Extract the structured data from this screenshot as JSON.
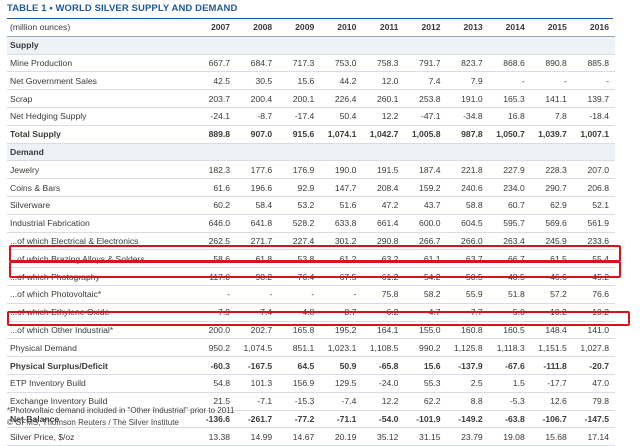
{
  "title": "TABLE 1 • WORLD SILVER SUPPLY AND DEMAND",
  "unit_label": "(million ounces)",
  "years": [
    "2007",
    "2008",
    "2009",
    "2010",
    "2011",
    "2012",
    "2013",
    "2014",
    "2015",
    "2016"
  ],
  "rows": [
    {
      "type": "section",
      "label": "Supply",
      "values": []
    },
    {
      "type": "row",
      "label": "Mine Production",
      "values": [
        "667.7",
        "684.7",
        "717.3",
        "753.0",
        "758.3",
        "791.7",
        "823.7",
        "868.6",
        "890.8",
        "885.8"
      ]
    },
    {
      "type": "row",
      "label": "Net Government Sales",
      "values": [
        "42.5",
        "30.5",
        "15.6",
        "44.2",
        "12.0",
        "7.4",
        "7.9",
        "-",
        "-",
        "-"
      ]
    },
    {
      "type": "row",
      "label": "Scrap",
      "values": [
        "203.7",
        "200.4",
        "200.1",
        "226.4",
        "260.1",
        "253.8",
        "191.0",
        "165.3",
        "141.1",
        "139.7"
      ]
    },
    {
      "type": "row",
      "label": "Net Hedging Supply",
      "values": [
        "-24.1",
        "-8.7",
        "-17.4",
        "50.4",
        "12.2",
        "-47.1",
        "-34.8",
        "16.8",
        "7.8",
        "-18.4"
      ]
    },
    {
      "type": "total",
      "label": "Total Supply",
      "values": [
        "889.8",
        "907.0",
        "915.6",
        "1,074.1",
        "1,042.7",
        "1,005.8",
        "987.8",
        "1,050.7",
        "1,039.7",
        "1,007.1"
      ]
    },
    {
      "type": "section",
      "label": "Demand",
      "values": []
    },
    {
      "type": "row",
      "label": "Jewelry",
      "values": [
        "182.3",
        "177.6",
        "176.9",
        "190.0",
        "191.5",
        "187.4",
        "221.8",
        "227.9",
        "228.3",
        "207.0"
      ]
    },
    {
      "type": "row",
      "label": "Coins & Bars",
      "values": [
        "61.6",
        "196.6",
        "92.9",
        "147.7",
        "208.4",
        "159.2",
        "240.6",
        "234.0",
        "290.7",
        "206.8"
      ]
    },
    {
      "type": "row",
      "label": "Silverware",
      "values": [
        "60.2",
        "58.4",
        "53.2",
        "51.6",
        "47.2",
        "43.7",
        "58.8",
        "60.7",
        "62.9",
        "52.1"
      ]
    },
    {
      "type": "row",
      "label": "Industrial Fabrication",
      "values": [
        "646.0",
        "641.8",
        "528.2",
        "633.8",
        "661.4",
        "600.0",
        "604.5",
        "595.7",
        "569.6",
        "561.9"
      ]
    },
    {
      "type": "row",
      "label": "...of which Electrical & Electronics",
      "values": [
        "262.5",
        "271.7",
        "227.4",
        "301.2",
        "290.8",
        "266.7",
        "266.0",
        "263.4",
        "245.9",
        "233.6"
      ]
    },
    {
      "type": "row",
      "label": "...of which Brazing Alloys & Solders",
      "values": [
        "58.6",
        "61.8",
        "53.8",
        "61.2",
        "63.2",
        "61.1",
        "63.7",
        "66.7",
        "61.5",
        "55.4"
      ]
    },
    {
      "type": "row",
      "label": "...of which Photography",
      "values": [
        "117.0",
        "98.2",
        "76.4",
        "67.5",
        "61.2",
        "54.2",
        "50.5",
        "48.5",
        "46.6",
        "45.2"
      ]
    },
    {
      "type": "row",
      "label": "...of which Photovoltaic*",
      "values": [
        "-",
        "-",
        "-",
        "-",
        "75.8",
        "58.2",
        "55.9",
        "51.8",
        "57.2",
        "76.6"
      ]
    },
    {
      "type": "row",
      "label": "...of which Ethylene Oxide",
      "values": [
        "7.9",
        "7.4",
        "4.8",
        "8.7",
        "6.2",
        "4.7",
        "7.7",
        "5.0",
        "10.2",
        "10.2"
      ]
    },
    {
      "type": "row",
      "label": "...of which Other Industrial*",
      "values": [
        "200.0",
        "202.7",
        "165.8",
        "195.2",
        "164.1",
        "155.0",
        "160.8",
        "160.5",
        "148.4",
        "141.0"
      ]
    },
    {
      "type": "row",
      "label": "Physical Demand",
      "values": [
        "950.2",
        "1,074.5",
        "851.1",
        "1,023.1",
        "1,108.5",
        "990.2",
        "1,125.8",
        "1,118.3",
        "1,151.5",
        "1,027.8"
      ]
    },
    {
      "type": "total",
      "label": "Physical Surplus/Deficit",
      "values": [
        "-60.3",
        "-167.5",
        "64.5",
        "50.9",
        "-65.8",
        "15.6",
        "-137.9",
        "-67.6",
        "-111.8",
        "-20.7"
      ]
    },
    {
      "type": "row",
      "label": "ETP Inventory Build",
      "values": [
        "54.8",
        "101.3",
        "156.9",
        "129.5",
        "-24.0",
        "55.3",
        "2.5",
        "1.5",
        "-17.7",
        "47.0"
      ]
    },
    {
      "type": "row",
      "label": "Exchange Inventory Build",
      "values": [
        "21.5",
        "-7.1",
        "-15.3",
        "-7.4",
        "12.2",
        "62.2",
        "8.8",
        "-5.3",
        "12.6",
        "79.8"
      ]
    },
    {
      "type": "total",
      "label": "Net Balance",
      "values": [
        "-136.6",
        "-261.7",
        "-77.2",
        "-71.1",
        "-54.0",
        "-101.9",
        "-149.2",
        "-63.8",
        "-106.7",
        "-147.5"
      ]
    },
    {
      "type": "row",
      "label": "Silver Price, $/oz",
      "values": [
        "13.38",
        "14.99",
        "14.67",
        "20.19",
        "35.12",
        "31.15",
        "23.79",
        "19.08",
        "15.68",
        "17.14"
      ]
    }
  ],
  "footnotes": {
    "n1": "*Photovoltaic demand included in \"Other Industrial\" prior to 2011",
    "n2": "© GFMS, Thomson Reuters / The Silver Institute"
  },
  "highlight_color": "#d8131b"
}
